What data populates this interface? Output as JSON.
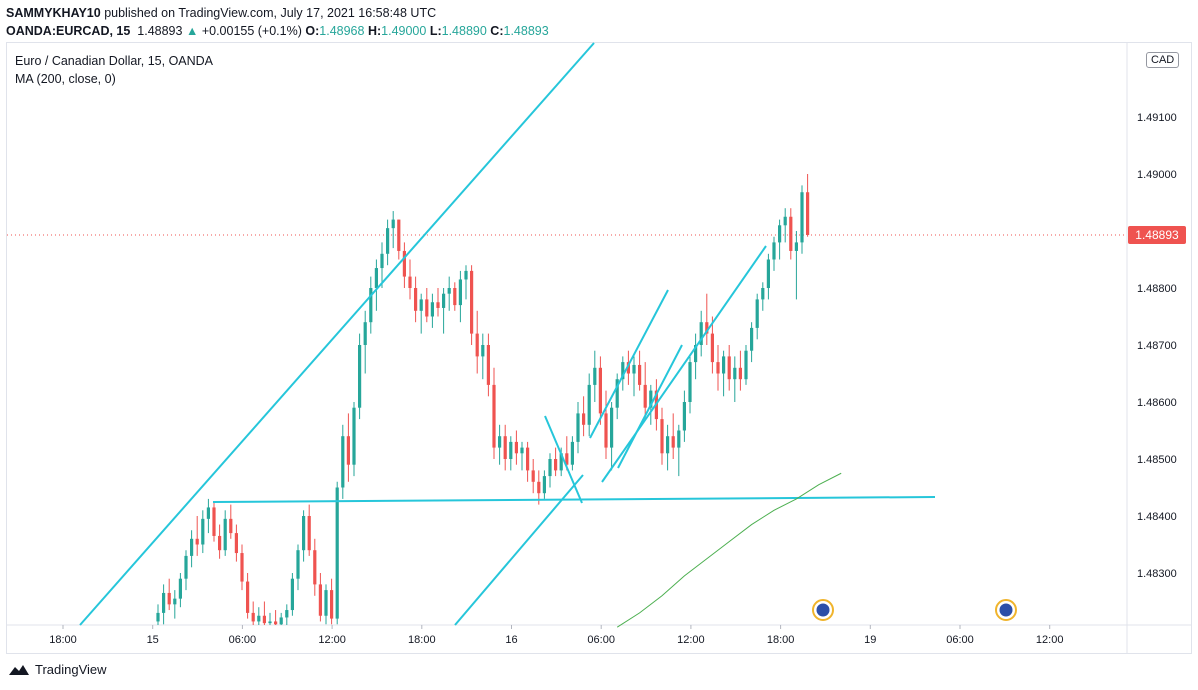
{
  "header": {
    "publisher": "SAMMYKHAY10",
    "published_text": "published on TradingView.com, July 17, 2021 16:58:48 UTC",
    "symbol": "OANDA:EURCAD, 15",
    "last": "1.48893",
    "change": "+0.00155 (+0.1%)",
    "open_label": "O:",
    "open": "1.48968",
    "high_label": "H:",
    "high": "1.49000",
    "low_label": "L:",
    "low": "1.48890",
    "close_label": "C:",
    "close": "1.48893"
  },
  "info": {
    "title": "Euro / Canadian Dollar, 15, OANDA",
    "indicator": "MA (200, close, 0)"
  },
  "currency_badge": "CAD",
  "price_tag": "1.48893",
  "footer": {
    "brand": "TradingView"
  },
  "colors": {
    "up": "#26a69a",
    "down": "#ef5350",
    "trendline": "#26c6da",
    "ma": "#4caf50",
    "last_price_line": "#ef5350"
  },
  "chart_data": {
    "type": "candlestick",
    "instrument": "EURCAD",
    "timeframe": "15",
    "y_axis": {
      "ticks": [
        "1.49100",
        "1.49000",
        "1.48800",
        "1.48700",
        "1.48600",
        "1.48500",
        "1.48400",
        "1.48300"
      ],
      "range": [
        1.482,
        1.492
      ]
    },
    "x_axis": {
      "ticks": [
        "18:00",
        "15",
        "06:00",
        "12:00",
        "18:00",
        "16",
        "06:00",
        "12:00",
        "18:00",
        "19",
        "06:00",
        "12:00"
      ]
    },
    "candles": [
      {
        "o": 1.48215,
        "h": 1.48245,
        "l": 1.48205,
        "c": 1.4823
      },
      {
        "o": 1.4823,
        "h": 1.4828,
        "l": 1.4821,
        "c": 1.48265
      },
      {
        "o": 1.48265,
        "h": 1.4829,
        "l": 1.48235,
        "c": 1.48245
      },
      {
        "o": 1.48245,
        "h": 1.4827,
        "l": 1.4822,
        "c": 1.48255
      },
      {
        "o": 1.48255,
        "h": 1.483,
        "l": 1.4824,
        "c": 1.4829
      },
      {
        "o": 1.4829,
        "h": 1.4834,
        "l": 1.4827,
        "c": 1.4833
      },
      {
        "o": 1.4833,
        "h": 1.48375,
        "l": 1.4831,
        "c": 1.4836
      },
      {
        "o": 1.4836,
        "h": 1.484,
        "l": 1.4833,
        "c": 1.4835
      },
      {
        "o": 1.4835,
        "h": 1.4841,
        "l": 1.48335,
        "c": 1.48395
      },
      {
        "o": 1.48395,
        "h": 1.4843,
        "l": 1.4837,
        "c": 1.48415
      },
      {
        "o": 1.48415,
        "h": 1.48425,
        "l": 1.48355,
        "c": 1.48365
      },
      {
        "o": 1.48365,
        "h": 1.48385,
        "l": 1.48325,
        "c": 1.4834
      },
      {
        "o": 1.4834,
        "h": 1.4841,
        "l": 1.4833,
        "c": 1.48395
      },
      {
        "o": 1.48395,
        "h": 1.4842,
        "l": 1.4836,
        "c": 1.4837
      },
      {
        "o": 1.4837,
        "h": 1.48385,
        "l": 1.4832,
        "c": 1.48335
      },
      {
        "o": 1.48335,
        "h": 1.4835,
        "l": 1.4827,
        "c": 1.48285
      },
      {
        "o": 1.48285,
        "h": 1.483,
        "l": 1.4822,
        "c": 1.4823
      },
      {
        "o": 1.4823,
        "h": 1.4825,
        "l": 1.48205,
        "c": 1.48215
      },
      {
        "o": 1.48215,
        "h": 1.4824,
        "l": 1.48205,
        "c": 1.48225
      },
      {
        "o": 1.48225,
        "h": 1.4825,
        "l": 1.48205,
        "c": 1.48212
      },
      {
        "o": 1.48212,
        "h": 1.4823,
        "l": 1.48205,
        "c": 1.48215
      },
      {
        "o": 1.48215,
        "h": 1.48235,
        "l": 1.48205,
        "c": 1.4821
      },
      {
        "o": 1.4821,
        "h": 1.4823,
        "l": 1.48205,
        "c": 1.48222
      },
      {
        "o": 1.48222,
        "h": 1.48245,
        "l": 1.48208,
        "c": 1.48235
      },
      {
        "o": 1.48235,
        "h": 1.483,
        "l": 1.48225,
        "c": 1.4829
      },
      {
        "o": 1.4829,
        "h": 1.4835,
        "l": 1.4827,
        "c": 1.4834
      },
      {
        "o": 1.4834,
        "h": 1.4841,
        "l": 1.4832,
        "c": 1.484
      },
      {
        "o": 1.484,
        "h": 1.4842,
        "l": 1.4833,
        "c": 1.4834
      },
      {
        "o": 1.4834,
        "h": 1.4836,
        "l": 1.4826,
        "c": 1.4828
      },
      {
        "o": 1.4828,
        "h": 1.483,
        "l": 1.48215,
        "c": 1.48225
      },
      {
        "o": 1.48225,
        "h": 1.4828,
        "l": 1.4821,
        "c": 1.4827
      },
      {
        "o": 1.4827,
        "h": 1.4829,
        "l": 1.4821,
        "c": 1.4822
      },
      {
        "o": 1.4822,
        "h": 1.4846,
        "l": 1.4821,
        "c": 1.4845
      },
      {
        "o": 1.4845,
        "h": 1.4856,
        "l": 1.4843,
        "c": 1.4854
      },
      {
        "o": 1.4854,
        "h": 1.4858,
        "l": 1.4846,
        "c": 1.4849
      },
      {
        "o": 1.4849,
        "h": 1.486,
        "l": 1.4847,
        "c": 1.4859
      },
      {
        "o": 1.4859,
        "h": 1.4872,
        "l": 1.4857,
        "c": 1.487
      },
      {
        "o": 1.487,
        "h": 1.4876,
        "l": 1.4865,
        "c": 1.4874
      },
      {
        "o": 1.4874,
        "h": 1.4882,
        "l": 1.4872,
        "c": 1.488
      },
      {
        "o": 1.488,
        "h": 1.4885,
        "l": 1.4876,
        "c": 1.48835
      },
      {
        "o": 1.48835,
        "h": 1.4888,
        "l": 1.488,
        "c": 1.4886
      },
      {
        "o": 1.4886,
        "h": 1.4892,
        "l": 1.4884,
        "c": 1.48905
      },
      {
        "o": 1.48905,
        "h": 1.48935,
        "l": 1.4887,
        "c": 1.4892
      },
      {
        "o": 1.4892,
        "h": 1.4892,
        "l": 1.4885,
        "c": 1.48865
      },
      {
        "o": 1.48865,
        "h": 1.4888,
        "l": 1.488,
        "c": 1.4882
      },
      {
        "o": 1.4882,
        "h": 1.4885,
        "l": 1.4878,
        "c": 1.488
      },
      {
        "o": 1.488,
        "h": 1.4882,
        "l": 1.4874,
        "c": 1.4876
      },
      {
        "o": 1.4876,
        "h": 1.4879,
        "l": 1.4872,
        "c": 1.4878
      },
      {
        "o": 1.4878,
        "h": 1.488,
        "l": 1.4874,
        "c": 1.4875
      },
      {
        "o": 1.4875,
        "h": 1.4879,
        "l": 1.4873,
        "c": 1.48775
      },
      {
        "o": 1.48775,
        "h": 1.488,
        "l": 1.4875,
        "c": 1.48765
      },
      {
        "o": 1.48765,
        "h": 1.488,
        "l": 1.4872,
        "c": 1.4879
      },
      {
        "o": 1.4879,
        "h": 1.4882,
        "l": 1.4876,
        "c": 1.488
      },
      {
        "o": 1.488,
        "h": 1.4881,
        "l": 1.4876,
        "c": 1.4877
      },
      {
        "o": 1.4877,
        "h": 1.4883,
        "l": 1.4874,
        "c": 1.48815
      },
      {
        "o": 1.48815,
        "h": 1.4884,
        "l": 1.4878,
        "c": 1.4883
      },
      {
        "o": 1.4883,
        "h": 1.4884,
        "l": 1.487,
        "c": 1.4872
      },
      {
        "o": 1.4872,
        "h": 1.4876,
        "l": 1.4865,
        "c": 1.4868
      },
      {
        "o": 1.4868,
        "h": 1.4872,
        "l": 1.4864,
        "c": 1.487
      },
      {
        "o": 1.487,
        "h": 1.4872,
        "l": 1.4861,
        "c": 1.4863
      },
      {
        "o": 1.4863,
        "h": 1.4866,
        "l": 1.485,
        "c": 1.4852
      },
      {
        "o": 1.4852,
        "h": 1.4856,
        "l": 1.4849,
        "c": 1.4854
      },
      {
        "o": 1.4854,
        "h": 1.4856,
        "l": 1.4848,
        "c": 1.485
      },
      {
        "o": 1.485,
        "h": 1.4854,
        "l": 1.4848,
        "c": 1.4853
      },
      {
        "o": 1.4853,
        "h": 1.4855,
        "l": 1.4849,
        "c": 1.4851
      },
      {
        "o": 1.4851,
        "h": 1.4853,
        "l": 1.4848,
        "c": 1.4852
      },
      {
        "o": 1.4852,
        "h": 1.4853,
        "l": 1.4846,
        "c": 1.4848
      },
      {
        "o": 1.4848,
        "h": 1.485,
        "l": 1.4844,
        "c": 1.4846
      },
      {
        "o": 1.4846,
        "h": 1.4848,
        "l": 1.4842,
        "c": 1.4844
      },
      {
        "o": 1.4844,
        "h": 1.4848,
        "l": 1.4843,
        "c": 1.4847
      },
      {
        "o": 1.4847,
        "h": 1.4851,
        "l": 1.4845,
        "c": 1.485
      },
      {
        "o": 1.485,
        "h": 1.4852,
        "l": 1.4847,
        "c": 1.4848
      },
      {
        "o": 1.4848,
        "h": 1.4852,
        "l": 1.4847,
        "c": 1.4851
      },
      {
        "o": 1.4851,
        "h": 1.4854,
        "l": 1.4848,
        "c": 1.4849
      },
      {
        "o": 1.4849,
        "h": 1.4854,
        "l": 1.4848,
        "c": 1.4853
      },
      {
        "o": 1.4853,
        "h": 1.486,
        "l": 1.4851,
        "c": 1.4858
      },
      {
        "o": 1.4858,
        "h": 1.4861,
        "l": 1.4854,
        "c": 1.4856
      },
      {
        "o": 1.4856,
        "h": 1.4865,
        "l": 1.4854,
        "c": 1.4863
      },
      {
        "o": 1.4863,
        "h": 1.4869,
        "l": 1.486,
        "c": 1.4866
      },
      {
        "o": 1.4866,
        "h": 1.4868,
        "l": 1.4856,
        "c": 1.4858
      },
      {
        "o": 1.4858,
        "h": 1.4862,
        "l": 1.485,
        "c": 1.4852
      },
      {
        "o": 1.4852,
        "h": 1.486,
        "l": 1.4848,
        "c": 1.4859
      },
      {
        "o": 1.4859,
        "h": 1.4865,
        "l": 1.4857,
        "c": 1.4864
      },
      {
        "o": 1.4864,
        "h": 1.4868,
        "l": 1.4862,
        "c": 1.4867
      },
      {
        "o": 1.4867,
        "h": 1.4869,
        "l": 1.4863,
        "c": 1.4865
      },
      {
        "o": 1.4865,
        "h": 1.4868,
        "l": 1.4861,
        "c": 1.48665
      },
      {
        "o": 1.48665,
        "h": 1.4869,
        "l": 1.4862,
        "c": 1.4863
      },
      {
        "o": 1.4863,
        "h": 1.4867,
        "l": 1.4857,
        "c": 1.4859
      },
      {
        "o": 1.4859,
        "h": 1.4863,
        "l": 1.4856,
        "c": 1.4862
      },
      {
        "o": 1.4862,
        "h": 1.4864,
        "l": 1.4855,
        "c": 1.4857
      },
      {
        "o": 1.4857,
        "h": 1.4859,
        "l": 1.4849,
        "c": 1.4851
      },
      {
        "o": 1.4851,
        "h": 1.4856,
        "l": 1.4848,
        "c": 1.4854
      },
      {
        "o": 1.4854,
        "h": 1.4858,
        "l": 1.485,
        "c": 1.4852
      },
      {
        "o": 1.4852,
        "h": 1.4856,
        "l": 1.4847,
        "c": 1.4855
      },
      {
        "o": 1.4855,
        "h": 1.4862,
        "l": 1.4853,
        "c": 1.486
      },
      {
        "o": 1.486,
        "h": 1.4868,
        "l": 1.4858,
        "c": 1.4867
      },
      {
        "o": 1.4867,
        "h": 1.4872,
        "l": 1.4864,
        "c": 1.487
      },
      {
        "o": 1.487,
        "h": 1.4876,
        "l": 1.4868,
        "c": 1.4874
      },
      {
        "o": 1.4874,
        "h": 1.4879,
        "l": 1.487,
        "c": 1.4872
      },
      {
        "o": 1.4872,
        "h": 1.4875,
        "l": 1.4865,
        "c": 1.4867
      },
      {
        "o": 1.4867,
        "h": 1.487,
        "l": 1.4862,
        "c": 1.4865
      },
      {
        "o": 1.4865,
        "h": 1.4869,
        "l": 1.4861,
        "c": 1.4868
      },
      {
        "o": 1.4868,
        "h": 1.487,
        "l": 1.4862,
        "c": 1.4864
      },
      {
        "o": 1.4864,
        "h": 1.4868,
        "l": 1.486,
        "c": 1.4866
      },
      {
        "o": 1.4866,
        "h": 1.4869,
        "l": 1.4862,
        "c": 1.4864
      },
      {
        "o": 1.4864,
        "h": 1.487,
        "l": 1.4863,
        "c": 1.4869
      },
      {
        "o": 1.4869,
        "h": 1.4874,
        "l": 1.4867,
        "c": 1.4873
      },
      {
        "o": 1.4873,
        "h": 1.4879,
        "l": 1.4871,
        "c": 1.4878
      },
      {
        "o": 1.4878,
        "h": 1.4881,
        "l": 1.4876,
        "c": 1.488
      },
      {
        "o": 1.488,
        "h": 1.4886,
        "l": 1.4878,
        "c": 1.4885
      },
      {
        "o": 1.4885,
        "h": 1.4889,
        "l": 1.4883,
        "c": 1.4888
      },
      {
        "o": 1.4888,
        "h": 1.4892,
        "l": 1.4885,
        "c": 1.4891
      },
      {
        "o": 1.4891,
        "h": 1.4894,
        "l": 1.4888,
        "c": 1.48925
      },
      {
        "o": 1.48925,
        "h": 1.4894,
        "l": 1.4885,
        "c": 1.48865
      },
      {
        "o": 1.48865,
        "h": 1.489,
        "l": 1.4878,
        "c": 1.4888
      },
      {
        "o": 1.4888,
        "h": 1.4898,
        "l": 1.4886,
        "c": 1.48968
      },
      {
        "o": 1.48968,
        "h": 1.49,
        "l": 1.4889,
        "c": 1.48893
      }
    ],
    "moving_average": {
      "name": "MA (200, close, 0)",
      "points": [
        [
          82,
          1.48205
        ],
        [
          86,
          1.4823
        ],
        [
          90,
          1.4826
        ],
        [
          94,
          1.48295
        ],
        [
          98,
          1.48325
        ],
        [
          102,
          1.48355
        ],
        [
          106,
          1.48385
        ],
        [
          110,
          1.4841
        ],
        [
          114,
          1.4843
        ],
        [
          118,
          1.48455
        ],
        [
          122,
          1.48475
        ]
      ]
    },
    "last_price": 1.48893
  }
}
